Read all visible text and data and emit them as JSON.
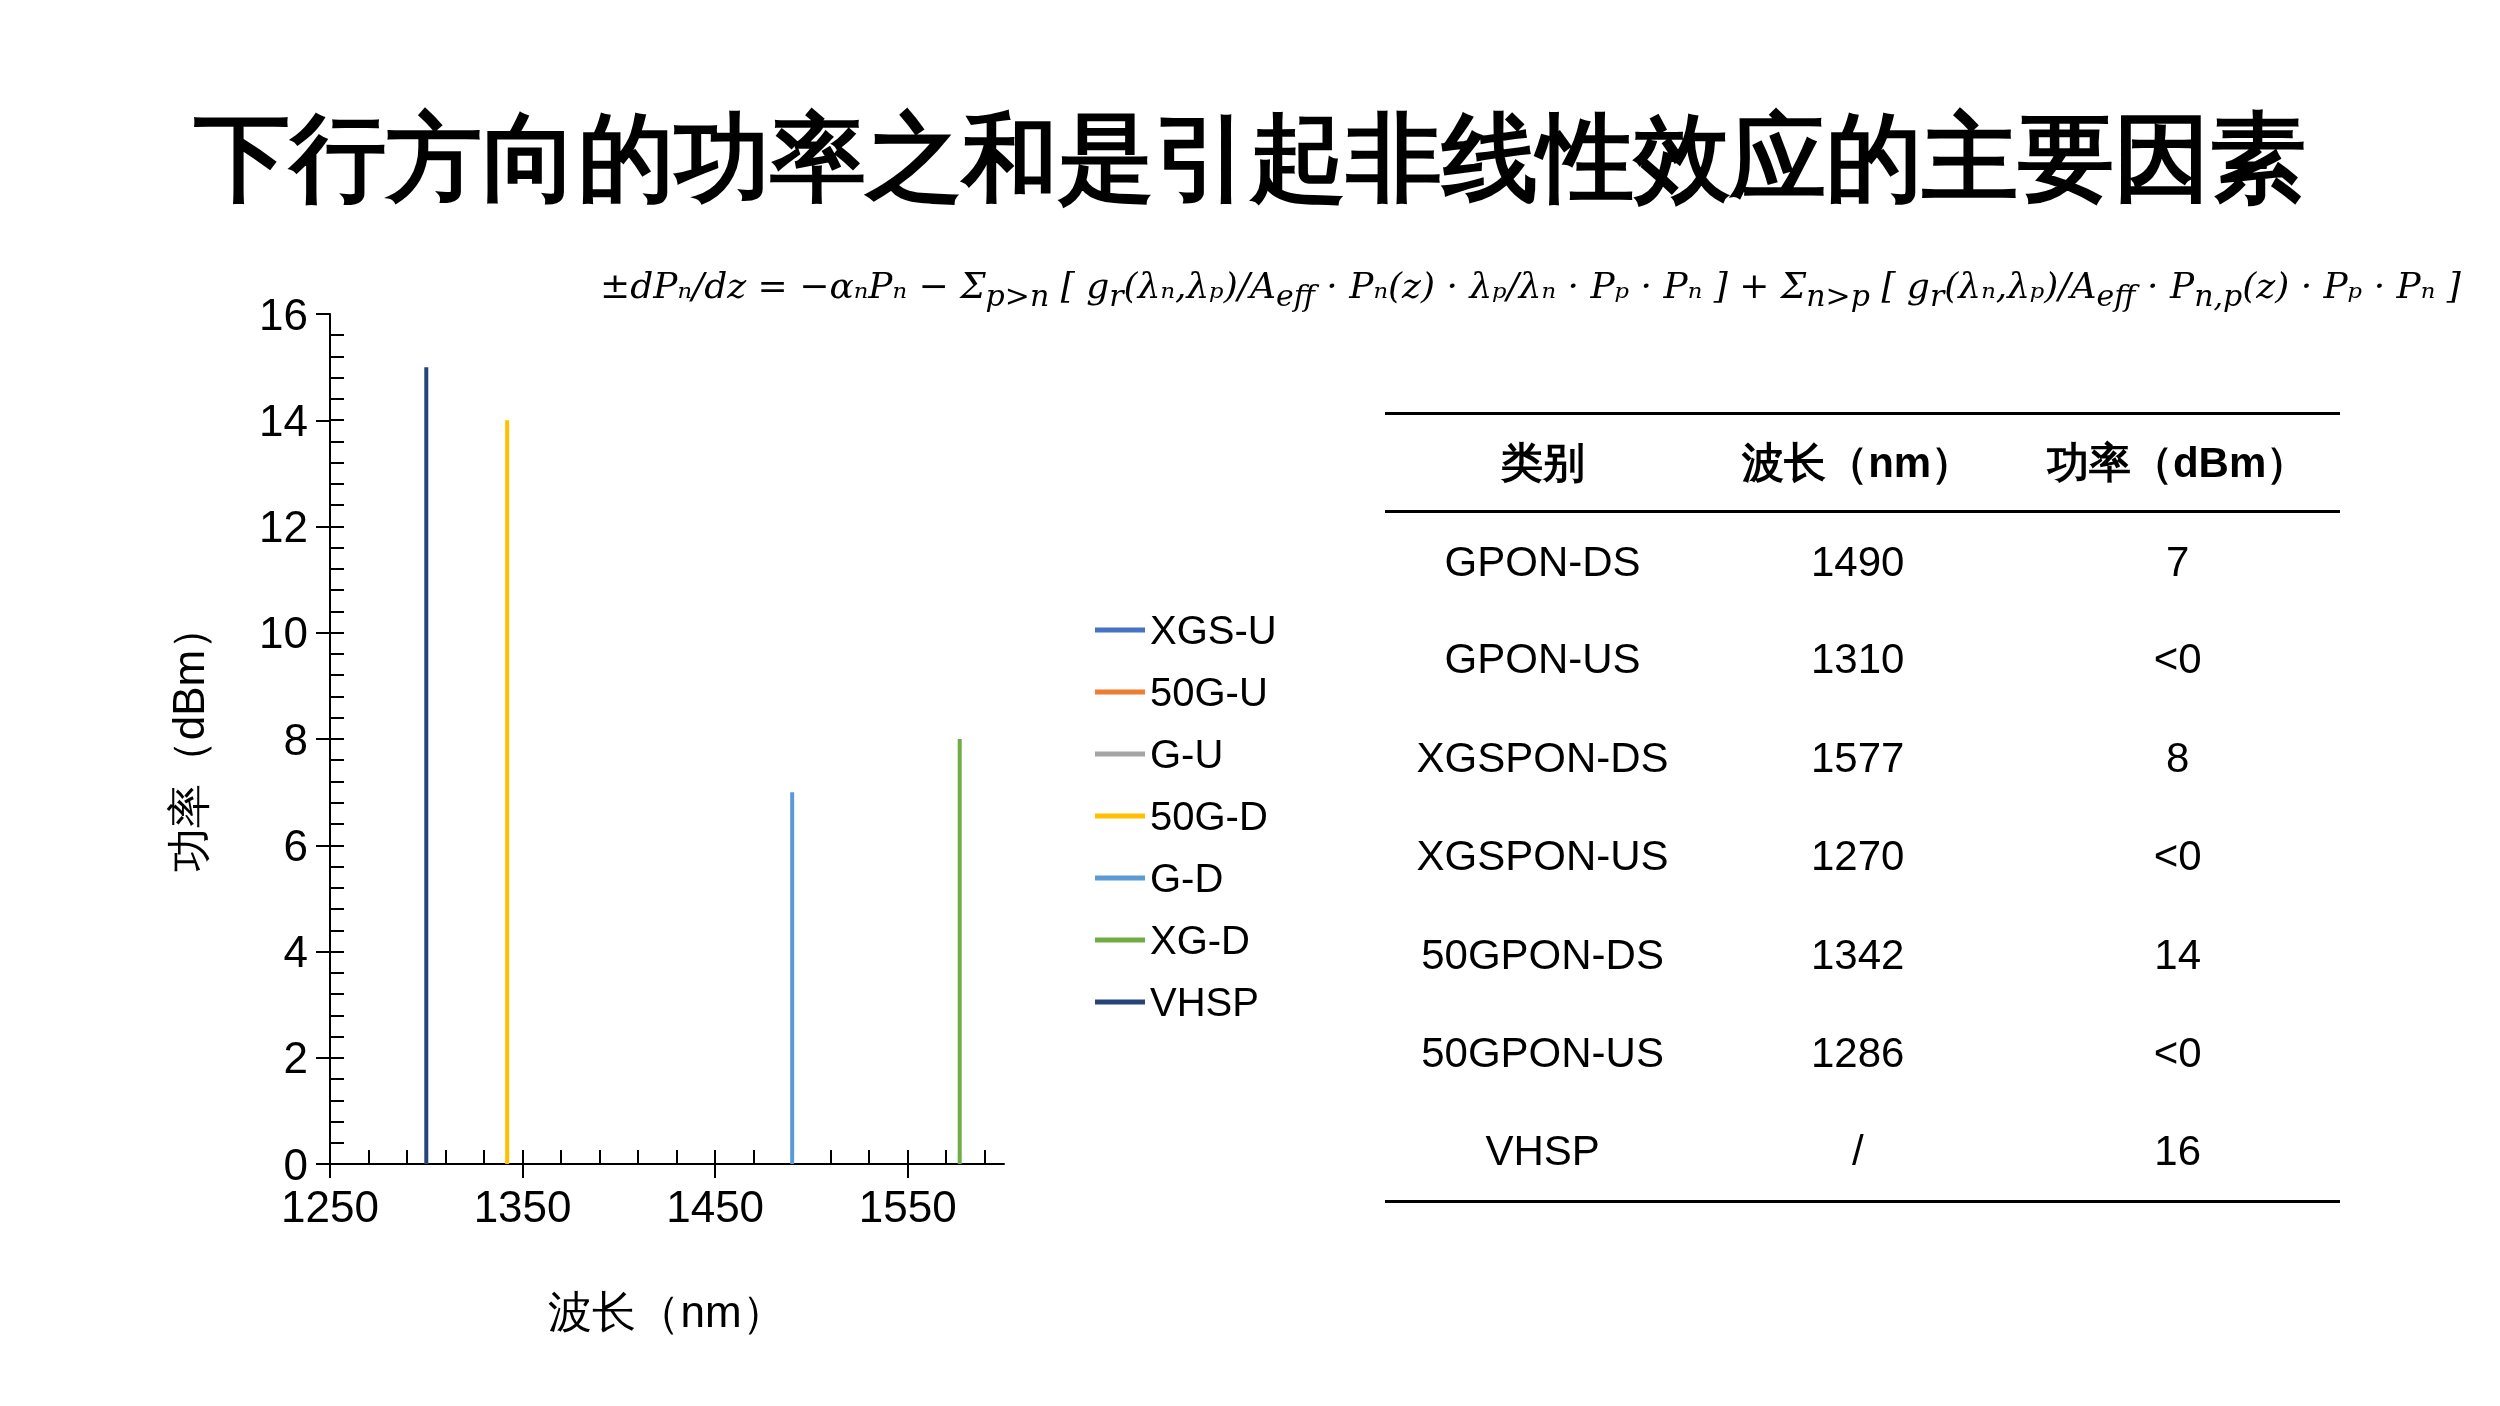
{
  "chart_data": [
    {
      "type": "line",
      "title": "下行方向的功率之和是引起非线性效应的主要因素",
      "annotations": [
        "±dPₙ/dz = −αₙPₙ − Σ$_{p>n}$ [ g$_{r}$(λₙ,λₚ)/A$_{eff}$ · Pₙ(z) · λₚ/λₙ · Pₚ · Pₙ ] + Σ$_{n>p}$ [ g$_{r}$(λₙ,λₚ)/A$_{eff}$ · P$_{n,p}$(z) · Pₚ · Pₙ ]"
      ],
      "xlabel": "波长（nm）",
      "ylabel": "功率（dBm）",
      "xlim": [
        1250,
        1600
      ],
      "xticks": [
        1250,
        1350,
        1450,
        1550
      ],
      "ylim": [
        0,
        16
      ],
      "yticks": [
        0,
        2,
        4,
        6,
        8,
        10,
        12,
        14,
        16
      ],
      "grid": false,
      "legend": "right",
      "marker": "none",
      "line_style": "solid",
      "series": [
        {
          "name": "XGS-U",
          "color": "#4472c4"
        },
        {
          "name": "50G-U",
          "color": "#ed7d31"
        },
        {
          "name": "G-U",
          "color": "#a5a5a5"
        },
        {
          "name": "50G-D",
          "color": "#ffc000",
          "x": [
            1342,
            1342
          ],
          "values": [
            0,
            14
          ]
        },
        {
          "name": "G-D",
          "color": "#5b9bd5",
          "x": [
            1490,
            1490
          ],
          "values": [
            0,
            7
          ]
        },
        {
          "name": "XG-D",
          "color": "#70ad47",
          "x": [
            1577,
            1577
          ],
          "values": [
            0,
            8
          ]
        },
        {
          "name": "VHSP",
          "color": "#264478",
          "x": [
            1300,
            1300
          ],
          "values": [
            0,
            15
          ]
        }
      ]
    },
    {
      "type": "other",
      "annotations": [
        "类别",
        "波长（nm）",
        "功率（dBm）",
        "GPON-DS",
        "1490",
        "7",
        "GPON-US",
        "1310",
        "<0",
        "XGSPON-DS",
        "1577",
        "8",
        "XGSPON-US",
        "1270",
        "<0",
        "50GPON-DS",
        "1342",
        "14",
        "50GPON-US",
        "1286",
        "<0",
        "VHSP",
        "/",
        "16"
      ]
    }
  ]
}
